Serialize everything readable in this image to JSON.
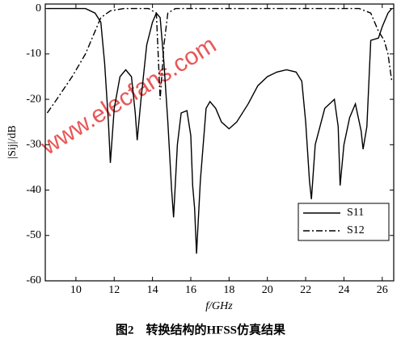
{
  "chart_data": {
    "type": "line",
    "caption": "图2　转换结构的HFSS仿真结果",
    "x_label": "f/GHz",
    "y_label": "|Sij|/dB",
    "watermark": "www.elecfans.com",
    "xlim": [
      8.4,
      26.6
    ],
    "ylim": [
      -60,
      1
    ],
    "xticks": [
      10,
      12,
      14,
      16,
      18,
      20,
      22,
      24,
      26
    ],
    "yticks": [
      0,
      -10,
      -20,
      -30,
      -40,
      -50,
      -60
    ],
    "legend": "lower right",
    "series": [
      {
        "name": "S11",
        "color": "#000000",
        "dash": "solid",
        "x": [
          8.5,
          10.5,
          11,
          11.3,
          11.5,
          11.7,
          11.8,
          12.0,
          12.3,
          12.6,
          12.9,
          13.1,
          13.2,
          13.4,
          13.7,
          14.0,
          14.2,
          14.4,
          14.6,
          14.8,
          15.0,
          15.1,
          15.3,
          15.5,
          15.8,
          16.0,
          16.1,
          16.2,
          16.3,
          16.5,
          16.8,
          17.0,
          17.3,
          17.6,
          18.0,
          18.4,
          19.0,
          19.5,
          20.0,
          20.5,
          21.0,
          21.5,
          21.8,
          22.0,
          22.2,
          22.3,
          22.5,
          23.0,
          23.5,
          23.7,
          23.8,
          24.0,
          24.3,
          24.6,
          24.9,
          25.0,
          25.2,
          25.4,
          25.8,
          26.0,
          26.3,
          26.5
        ],
        "values": [
          0,
          0,
          -1,
          -3,
          -12,
          -25,
          -34,
          -22,
          -15,
          -13.5,
          -15,
          -23,
          -29,
          -20,
          -8,
          -3,
          -1,
          -2,
          -12,
          -25,
          -40,
          -46,
          -30,
          -23,
          -22.5,
          -28,
          -39,
          -44,
          -54,
          -38,
          -22,
          -20.5,
          -22,
          -25,
          -26.5,
          -25,
          -21,
          -17,
          -15,
          -14,
          -13.5,
          -14,
          -16,
          -25,
          -38,
          -42,
          -30,
          -22,
          -20,
          -26,
          -39,
          -30,
          -24,
          -21,
          -27,
          -31,
          -26,
          -7,
          -6.5,
          -4,
          -1,
          0
        ]
      },
      {
        "name": "S12",
        "color": "#000000",
        "dash": "dashdot",
        "x": [
          8.5,
          9.0,
          9.8,
          10.5,
          11.0,
          11.3,
          11.8,
          12.5,
          13.8,
          14.2,
          14.4,
          14.6,
          14.8,
          15.2,
          24.8,
          25.4,
          25.8,
          26.1,
          26.3,
          26.5
        ],
        "values": [
          -23,
          -20,
          -15,
          -10,
          -5,
          -2,
          -0.5,
          0,
          0,
          -1,
          -20,
          -8,
          -1,
          0,
          0,
          -1,
          -5,
          -7,
          -10,
          -16
        ]
      }
    ]
  }
}
